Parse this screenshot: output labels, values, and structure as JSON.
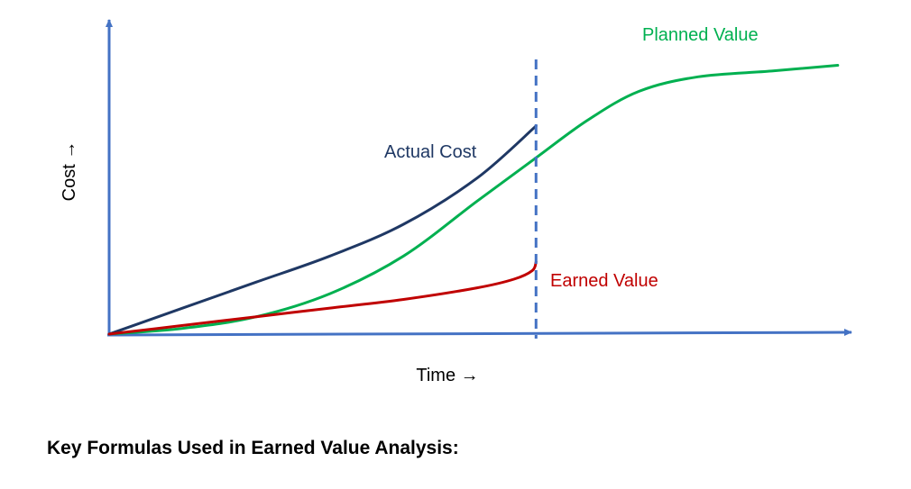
{
  "chart_data": {
    "type": "line",
    "title": "",
    "xlabel": "Time →",
    "ylabel": "Cost →",
    "xlim": [
      0,
      100
    ],
    "ylim": [
      0,
      100
    ],
    "grid": false,
    "legend": "inline labels",
    "status_date_marker": {
      "x": 58,
      "style": "dashed"
    },
    "series": [
      {
        "name": "Planned Value",
        "color": "#00b050",
        "x": [
          0,
          10,
          20,
          30,
          40,
          50,
          58,
          65,
          72,
          80,
          90,
          99
        ],
        "y": [
          0,
          2,
          6,
          14,
          27,
          46,
          61,
          74,
          84,
          89,
          91,
          93
        ]
      },
      {
        "name": "Actual Cost",
        "color": "#1f3864",
        "x": [
          0,
          10,
          20,
          30,
          40,
          50,
          58
        ],
        "y": [
          0,
          9,
          18,
          27,
          38,
          54,
          72
        ]
      },
      {
        "name": "Earned Value",
        "color": "#c00000",
        "x": [
          0,
          10,
          20,
          30,
          40,
          50,
          55,
          57.5,
          58
        ],
        "y": [
          0,
          3,
          6,
          9,
          12,
          16,
          19,
          22,
          25
        ]
      }
    ]
  },
  "footer": {
    "heading": "Key Formulas Used in Earned Value Analysis:"
  }
}
